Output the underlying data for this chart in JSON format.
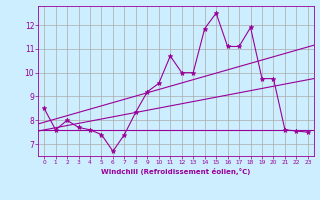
{
  "xlabel": "Windchill (Refroidissement éolien,°C)",
  "background_color": "#cceeff",
  "grid_color": "#aaaaaa",
  "line_color": "#990099",
  "xlim": [
    -0.5,
    23.5
  ],
  "ylim": [
    6.5,
    12.8
  ],
  "yticks": [
    7,
    8,
    9,
    10,
    11,
    12
  ],
  "xticks": [
    0,
    1,
    2,
    3,
    4,
    5,
    6,
    7,
    8,
    9,
    10,
    11,
    12,
    13,
    14,
    15,
    16,
    17,
    18,
    19,
    20,
    21,
    22,
    23
  ],
  "scatter_x": [
    0,
    1,
    2,
    3,
    4,
    5,
    6,
    7,
    8,
    9,
    10,
    11,
    12,
    13,
    14,
    15,
    16,
    17,
    18,
    19,
    20,
    21,
    22,
    23
  ],
  "scatter_y": [
    8.5,
    7.6,
    8.0,
    7.7,
    7.6,
    7.4,
    6.7,
    7.4,
    8.35,
    9.2,
    9.55,
    10.7,
    10.0,
    10.0,
    11.85,
    12.5,
    11.1,
    11.1,
    11.9,
    9.75,
    9.75,
    7.6,
    7.55,
    7.5
  ],
  "line1_x": [
    -0.5,
    23.5
  ],
  "line1_y": [
    7.6,
    7.6
  ],
  "line2_x": [
    -0.5,
    23.5
  ],
  "line2_y": [
    7.85,
    11.15
  ],
  "line3_x": [
    -0.5,
    23.5
  ],
  "line3_y": [
    7.55,
    9.75
  ]
}
